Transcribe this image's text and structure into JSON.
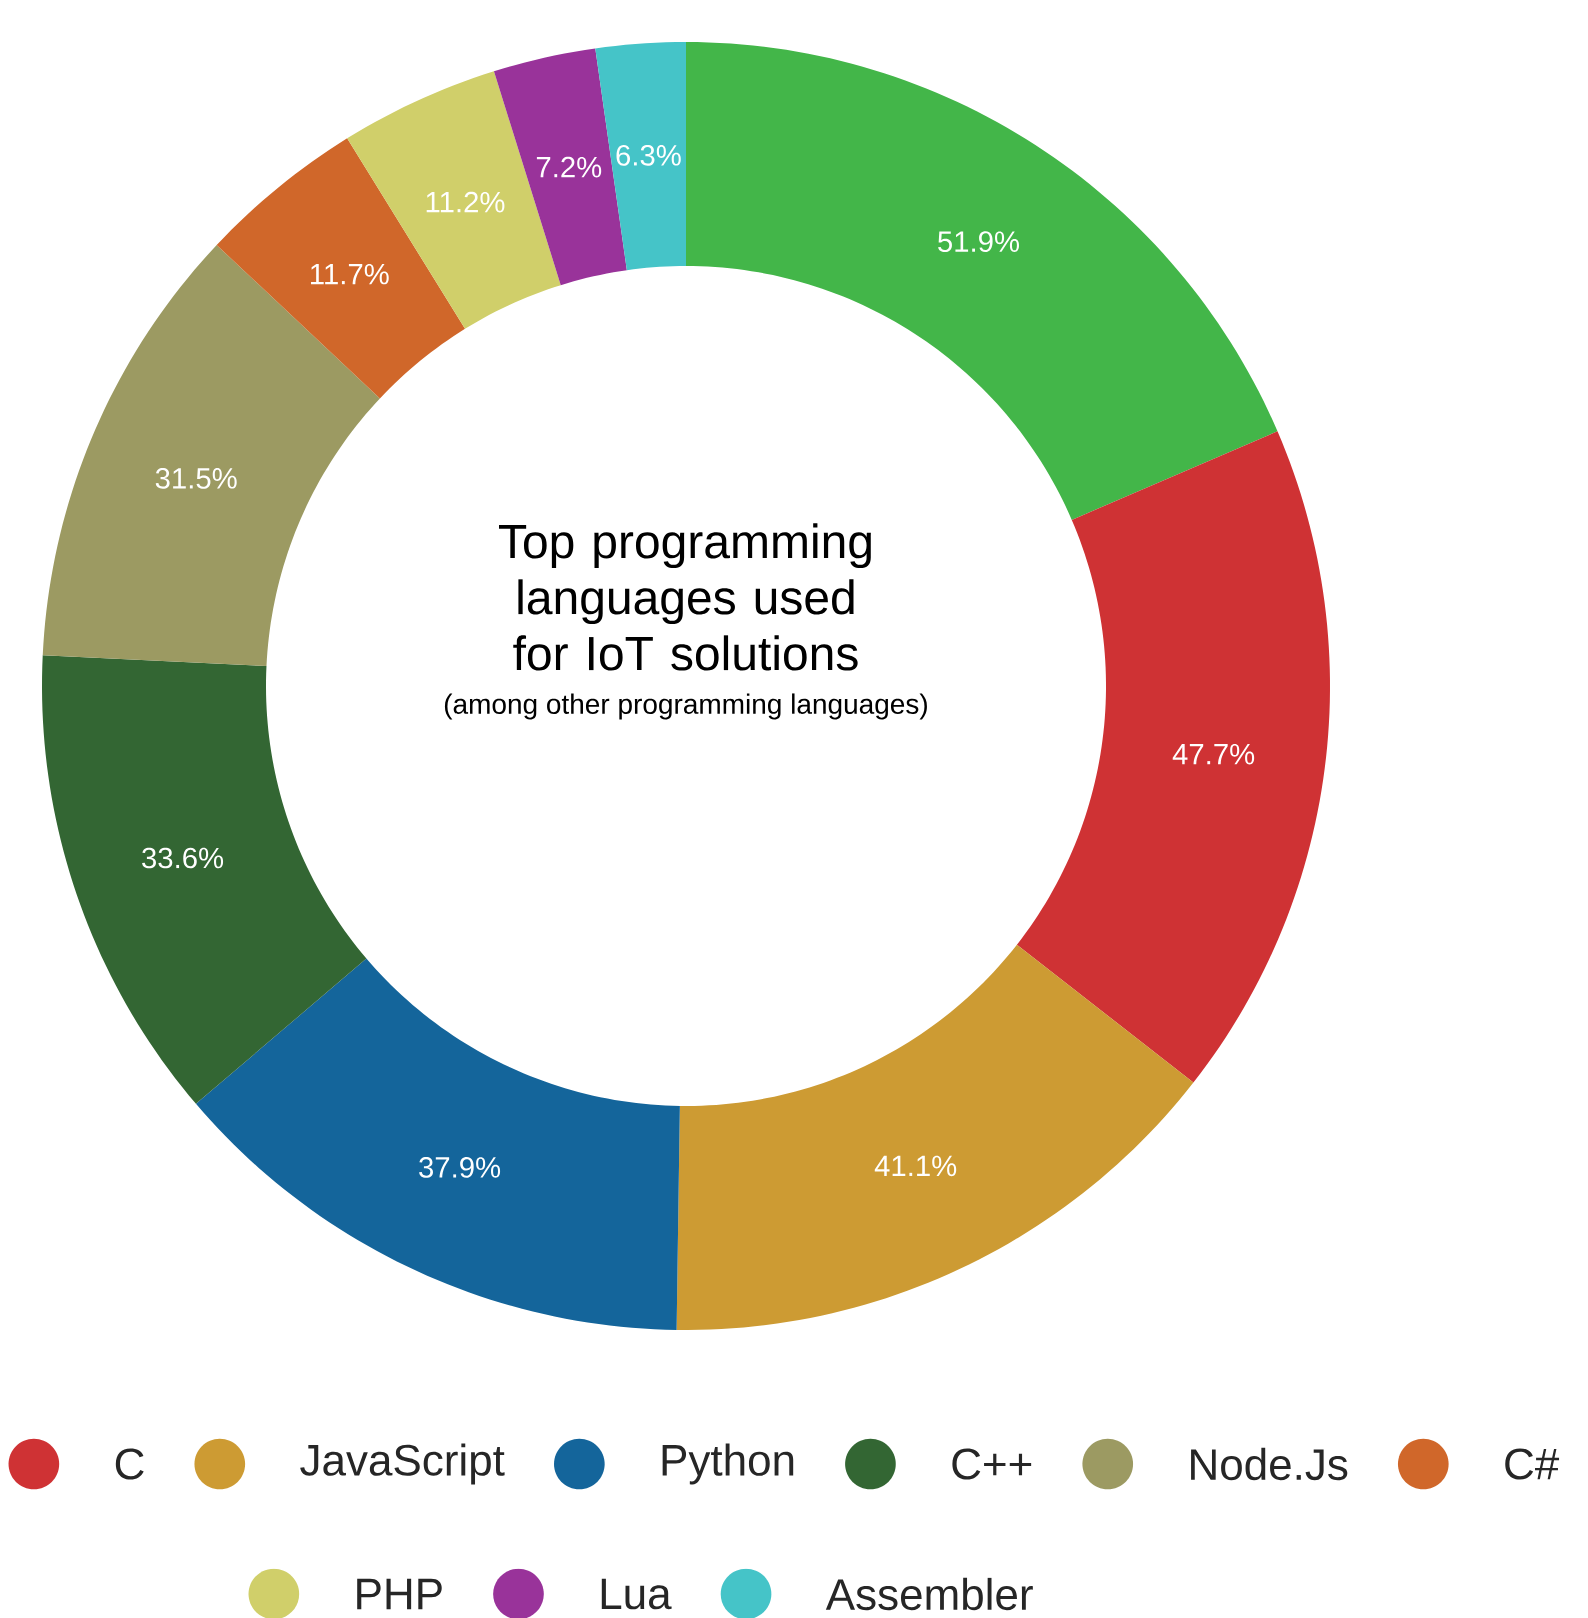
{
  "chart_data": {
    "type": "donut",
    "title": "Top programming languages used for IoT solutions",
    "subtitle": "(among other programming languages)",
    "categories": [
      null,
      "C",
      "JavaScript",
      "Python",
      "C++",
      "Node.Js",
      "C#",
      "PHP",
      "Lua",
      "Assembler"
    ],
    "values": [
      51.9,
      47.7,
      41.1,
      37.9,
      33.6,
      31.5,
      11.7,
      11.2,
      7.2,
      6.3
    ],
    "value_labels": [
      "51.9%",
      "47.7%",
      "41.1%",
      "37.9%",
      "33.6%",
      "31.5%",
      "11.7%",
      "11.2%",
      "7.2%",
      "6.3%"
    ],
    "colors": [
      "#43b649",
      "#cf3234",
      "#cd9b33",
      "#14659b",
      "#336633",
      "#9c9a62",
      "#d0672a",
      "#d0cf6a",
      "#99339a",
      "#45c4c8"
    ],
    "legend": "bottom"
  }
}
